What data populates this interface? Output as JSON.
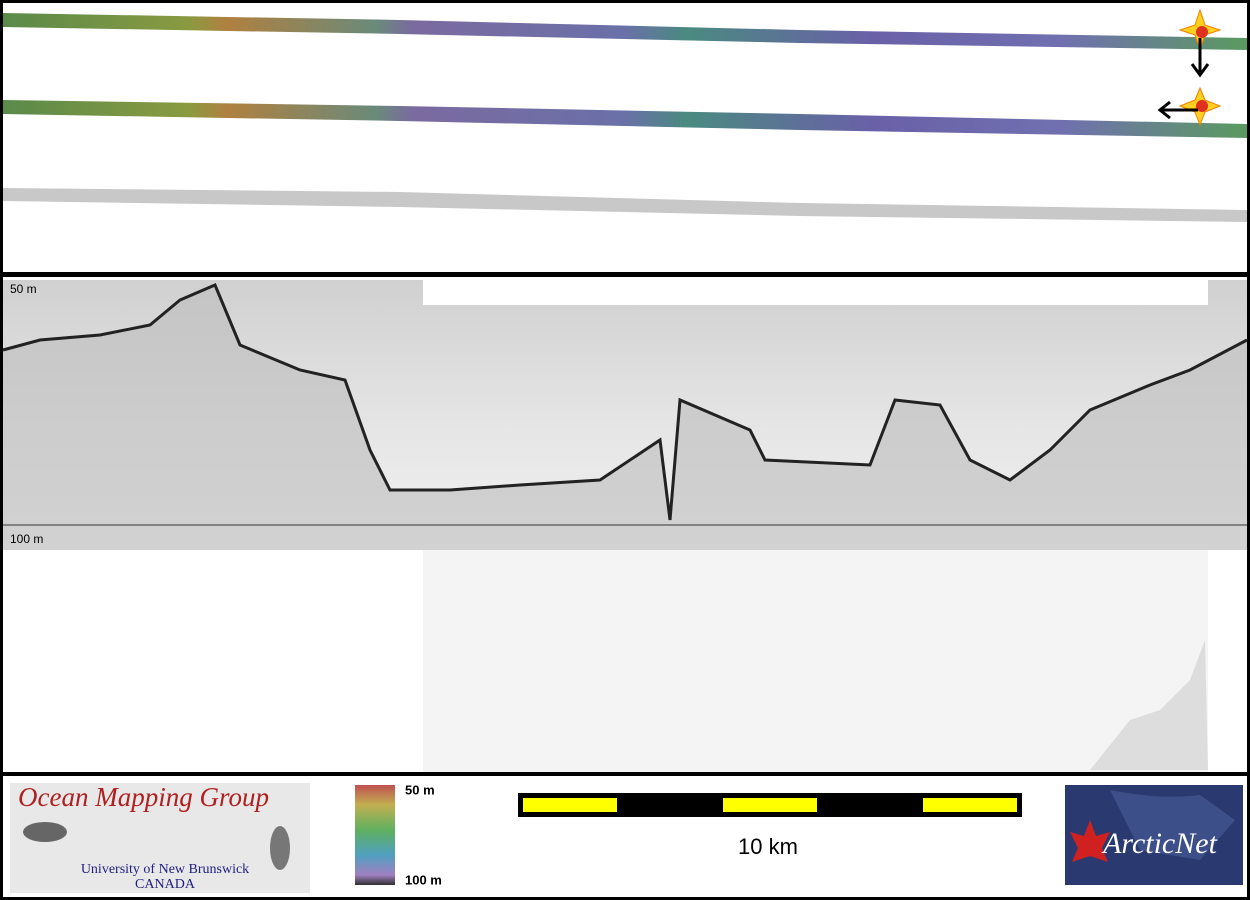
{
  "profile": {
    "depth_top": "50 m",
    "depth_bottom": "100 m"
  },
  "legend": {
    "top": "50 m",
    "bottom": "100 m"
  },
  "scale_bar": {
    "label": "10 km"
  },
  "logos": {
    "omg": {
      "title": "Ocean Mapping Group",
      "university": "University of New Brunswick",
      "country": "CANADA"
    },
    "arcticnet": "ArcticNet"
  }
}
